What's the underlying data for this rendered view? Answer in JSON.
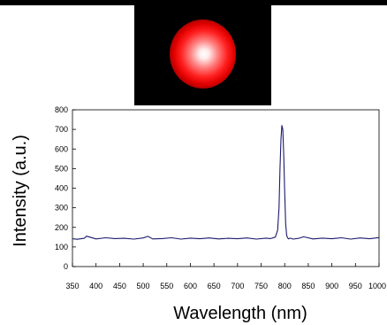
{
  "beam_photo": {
    "spot_color": "#ff1a1a",
    "background_color": "#000000"
  },
  "chart_data": {
    "type": "line",
    "title": "",
    "xlabel": "Wavelength (nm)",
    "ylabel": "Intensity (a.u.)",
    "xlim": [
      350,
      1000
    ],
    "ylim": [
      0,
      800
    ],
    "x_ticks": [
      "350",
      "400",
      "450",
      "500",
      "550",
      "600",
      "650",
      "700",
      "750",
      "800",
      "850",
      "900",
      "950",
      "1000"
    ],
    "y_ticks": [
      "0",
      "100",
      "200",
      "300",
      "400",
      "500",
      "600",
      "700",
      "800"
    ],
    "line_color": "#1a1a6e",
    "series": [
      {
        "x": [
          350,
          360,
          375,
          380,
          400,
          420,
          440,
          460,
          480,
          500,
          510,
          520,
          540,
          560,
          580,
          600,
          620,
          640,
          660,
          680,
          700,
          720,
          740,
          760,
          770,
          780,
          785,
          788,
          790,
          792,
          794,
          796,
          798,
          800,
          802,
          804,
          806,
          808,
          812,
          818,
          830,
          840,
          860,
          880,
          900,
          920,
          940,
          960,
          980,
          1000
        ],
        "y": [
          142,
          139,
          144,
          155,
          141,
          147,
          143,
          144,
          140,
          146,
          154,
          141,
          143,
          147,
          140,
          145,
          142,
          146,
          141,
          144,
          142,
          146,
          140,
          145,
          143,
          150,
          185,
          300,
          500,
          650,
          720,
          700,
          560,
          380,
          220,
          160,
          148,
          141,
          145,
          140,
          144,
          152,
          141,
          145,
          142,
          147,
          140,
          146,
          142,
          148
        ]
      }
    ]
  }
}
